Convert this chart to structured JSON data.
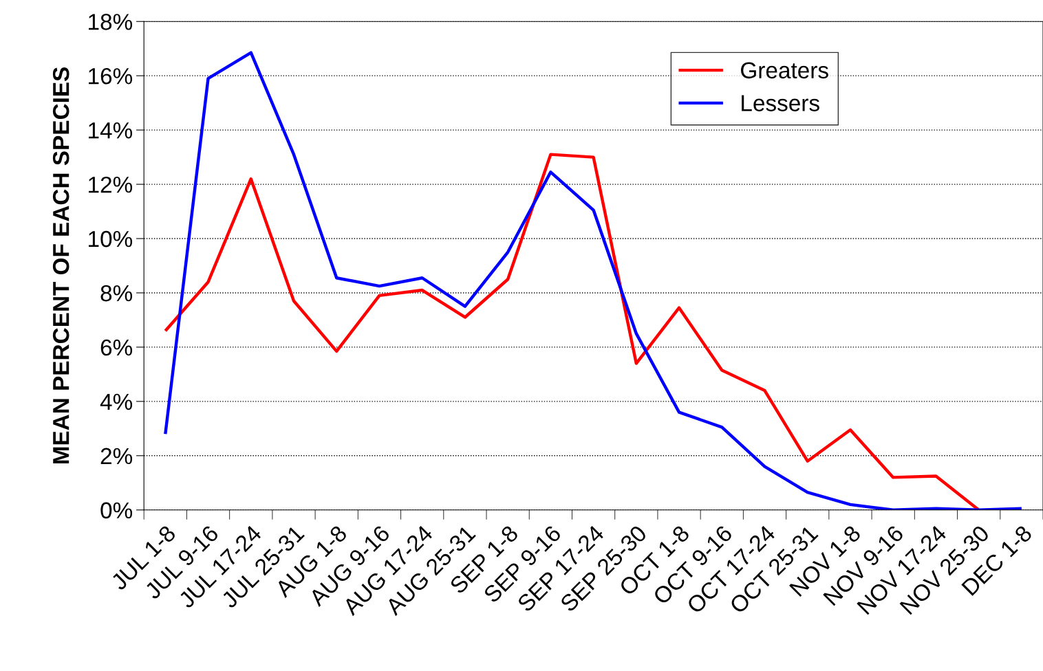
{
  "chart_data": {
    "type": "line",
    "ylabel": "MEAN PERCENT OF EACH SPECIES",
    "categories": [
      "JUL 1-8",
      "JUL 9-16",
      "JUL 17-24",
      "JUL 25-31",
      "AUG 1-8",
      "AUG 9-16",
      "AUG 17-24",
      "AUG 25-31",
      "SEP 1-8",
      "SEP 9-16",
      "SEP 17-24",
      "SEP 25-30",
      "OCT 1-8",
      "OCT 9-16",
      "OCT 17-24",
      "OCT 25-31",
      "NOV 1-8",
      "NOV 9-16",
      "NOV 17-24",
      "NOV 25-30",
      "DEC 1-8"
    ],
    "series": [
      {
        "name": "Greaters",
        "color": "#ff0000",
        "values": [
          6.6,
          8.4,
          12.2,
          7.7,
          5.85,
          7.9,
          8.1,
          7.1,
          8.5,
          13.1,
          13.0,
          5.4,
          7.45,
          5.15,
          4.4,
          1.8,
          2.95,
          1.2,
          1.25,
          0,
          null
        ]
      },
      {
        "name": "Lessers",
        "color": "#0000ff",
        "values": [
          2.8,
          15.9,
          16.85,
          13.1,
          8.55,
          8.25,
          8.55,
          7.5,
          9.5,
          12.45,
          11.05,
          6.5,
          3.6,
          3.05,
          1.6,
          0.65,
          0.2,
          0,
          0.05,
          0,
          0.05
        ]
      }
    ],
    "ylim": [
      0,
      18
    ],
    "yticks": [
      {
        "value": 0,
        "label": "0%"
      },
      {
        "value": 2,
        "label": "2%"
      },
      {
        "value": 4,
        "label": "4%"
      },
      {
        "value": 6,
        "label": "6%"
      },
      {
        "value": 8,
        "label": "8%"
      },
      {
        "value": 10,
        "label": "10%"
      },
      {
        "value": 12,
        "label": "12%"
      },
      {
        "value": 14,
        "label": "14%"
      },
      {
        "value": 16,
        "label": "16%"
      },
      {
        "value": 18,
        "label": "18%"
      }
    ],
    "grid": "y",
    "legend": "top right",
    "marker": "none",
    "line_style": "solid"
  }
}
